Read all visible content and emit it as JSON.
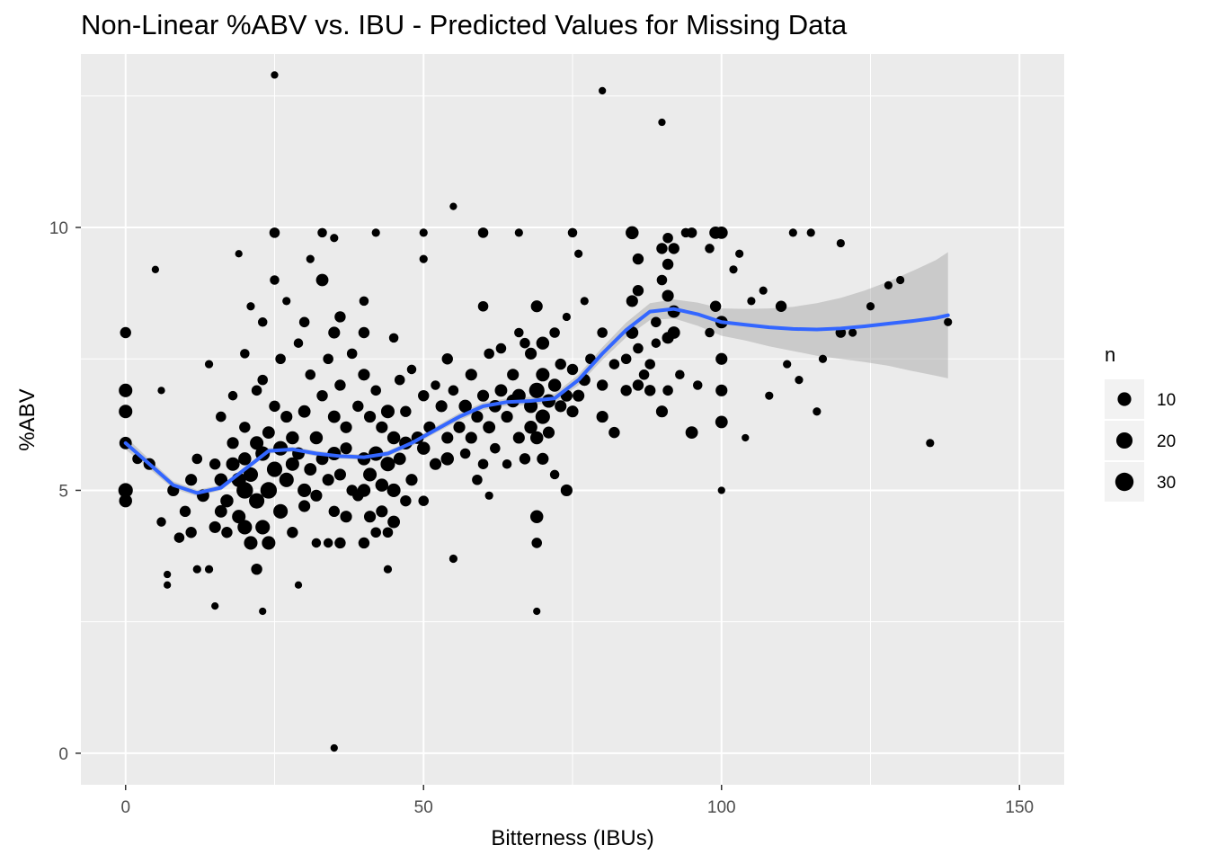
{
  "chart_data": {
    "type": "scatter",
    "title": "Non-Linear %ABV vs. IBU - Predicted Values for Missing Data",
    "xlabel": "Bitterness (IBUs)",
    "ylabel": "%ABV",
    "xlim": [
      -7.5,
      157.5
    ],
    "ylim": [
      -0.6,
      13.3
    ],
    "x_ticks": [
      0,
      50,
      100,
      150
    ],
    "y_ticks": [
      0,
      5,
      10
    ],
    "grid": true,
    "colors": {
      "panel": "#EBEBEB",
      "grid": "#FFFFFF",
      "points": "#000000",
      "smooth_line": "#3366FF",
      "confidence_band": "#999999"
    },
    "legend": {
      "title": "n",
      "placement": "right",
      "entries": [
        {
          "label": "10",
          "n": 10
        },
        {
          "label": "20",
          "n": 20
        },
        {
          "label": "30",
          "n": 30
        }
      ]
    },
    "points": [
      [
        0,
        5.0,
        20
      ],
      [
        0,
        5.9,
        12
      ],
      [
        0,
        6.5,
        16
      ],
      [
        0,
        6.9,
        16
      ],
      [
        0,
        8.0,
        8
      ],
      [
        0,
        4.8,
        14
      ],
      [
        2,
        5.6,
        6
      ],
      [
        4,
        5.5,
        10
      ],
      [
        5,
        9.2,
        1
      ],
      [
        6,
        4.4,
        4
      ],
      [
        6,
        6.9,
        1
      ],
      [
        7,
        3.4,
        1
      ],
      [
        7,
        3.2,
        1
      ],
      [
        8,
        5.0,
        10
      ],
      [
        9,
        4.1,
        6
      ],
      [
        10,
        4.6,
        8
      ],
      [
        11,
        5.2,
        10
      ],
      [
        11,
        4.2,
        8
      ],
      [
        12,
        3.5,
        2
      ],
      [
        12,
        5.6,
        6
      ],
      [
        13,
        4.9,
        12
      ],
      [
        14,
        3.5,
        2
      ],
      [
        14,
        7.4,
        2
      ],
      [
        15,
        4.3,
        10
      ],
      [
        15,
        5.5,
        8
      ],
      [
        15,
        2.8,
        1
      ],
      [
        16,
        4.6,
        12
      ],
      [
        16,
        6.4,
        6
      ],
      [
        16,
        5.2,
        14
      ],
      [
        17,
        4.8,
        14
      ],
      [
        17,
        4.2,
        8
      ],
      [
        18,
        5.5,
        16
      ],
      [
        18,
        5.9,
        10
      ],
      [
        18,
        6.8,
        4
      ],
      [
        19,
        5.2,
        20
      ],
      [
        19,
        4.5,
        16
      ],
      [
        19,
        9.5,
        1
      ],
      [
        20,
        5.0,
        30
      ],
      [
        20,
        4.3,
        20
      ],
      [
        20,
        5.6,
        14
      ],
      [
        20,
        6.2,
        8
      ],
      [
        20,
        7.6,
        4
      ],
      [
        21,
        4.0,
        16
      ],
      [
        21,
        8.5,
        2
      ],
      [
        21,
        5.3,
        20
      ],
      [
        22,
        4.8,
        24
      ],
      [
        22,
        6.9,
        6
      ],
      [
        22,
        3.5,
        8
      ],
      [
        22,
        5.9,
        16
      ],
      [
        23,
        4.3,
        20
      ],
      [
        23,
        5.7,
        20
      ],
      [
        23,
        7.1,
        6
      ],
      [
        23,
        8.2,
        4
      ],
      [
        23,
        2.7,
        1
      ],
      [
        24,
        5.0,
        30
      ],
      [
        24,
        6.1,
        12
      ],
      [
        24,
        4.0,
        16
      ],
      [
        25,
        5.4,
        24
      ],
      [
        25,
        6.6,
        8
      ],
      [
        25,
        9.0,
        4
      ],
      [
        25,
        9.9,
        6
      ],
      [
        25,
        12.9,
        1
      ],
      [
        26,
        4.6,
        20
      ],
      [
        26,
        5.8,
        20
      ],
      [
        26,
        7.5,
        6
      ],
      [
        27,
        5.2,
        20
      ],
      [
        27,
        6.4,
        10
      ],
      [
        27,
        8.6,
        2
      ],
      [
        28,
        5.5,
        16
      ],
      [
        28,
        4.2,
        8
      ],
      [
        28,
        6.0,
        14
      ],
      [
        29,
        5.7,
        12
      ],
      [
        29,
        7.8,
        4
      ],
      [
        29,
        3.2,
        1
      ],
      [
        30,
        5.0,
        16
      ],
      [
        30,
        6.5,
        12
      ],
      [
        30,
        4.7,
        10
      ],
      [
        30,
        8.2,
        6
      ],
      [
        31,
        5.4,
        12
      ],
      [
        31,
        7.2,
        6
      ],
      [
        31,
        9.4,
        2
      ],
      [
        32,
        4.9,
        10
      ],
      [
        32,
        6.0,
        14
      ],
      [
        32,
        4.0,
        4
      ],
      [
        33,
        5.6,
        12
      ],
      [
        33,
        6.8,
        8
      ],
      [
        33,
        9.0,
        12
      ],
      [
        33,
        9.9,
        4
      ],
      [
        34,
        5.2,
        10
      ],
      [
        34,
        7.5,
        6
      ],
      [
        34,
        4.0,
        4
      ],
      [
        35,
        5.7,
        16
      ],
      [
        35,
        6.4,
        12
      ],
      [
        35,
        8.0,
        10
      ],
      [
        35,
        4.6,
        8
      ],
      [
        35,
        9.8,
        2
      ],
      [
        35,
        0.1,
        1
      ],
      [
        36,
        5.3,
        10
      ],
      [
        36,
        7.0,
        8
      ],
      [
        36,
        8.3,
        8
      ],
      [
        36,
        4.0,
        8
      ],
      [
        37,
        5.8,
        10
      ],
      [
        37,
        4.5,
        10
      ],
      [
        37,
        6.2,
        10
      ],
      [
        38,
        5.0,
        8
      ],
      [
        38,
        7.6,
        6
      ],
      [
        39,
        4.9,
        8
      ],
      [
        39,
        6.6,
        8
      ],
      [
        40,
        5.6,
        14
      ],
      [
        40,
        5.0,
        14
      ],
      [
        40,
        7.2,
        10
      ],
      [
        40,
        8.0,
        8
      ],
      [
        40,
        8.6,
        4
      ],
      [
        40,
        4.0,
        8
      ],
      [
        41,
        4.5,
        10
      ],
      [
        41,
        6.4,
        10
      ],
      [
        41,
        5.3,
        16
      ],
      [
        42,
        5.7,
        20
      ],
      [
        42,
        6.9,
        6
      ],
      [
        42,
        4.2,
        6
      ],
      [
        42,
        9.9,
        2
      ],
      [
        43,
        4.6,
        10
      ],
      [
        43,
        6.2,
        10
      ],
      [
        43,
        5.1,
        14
      ],
      [
        44,
        5.5,
        20
      ],
      [
        44,
        6.5,
        16
      ],
      [
        44,
        4.2,
        6
      ],
      [
        44,
        3.5,
        2
      ],
      [
        45,
        5.0,
        16
      ],
      [
        45,
        6.0,
        14
      ],
      [
        45,
        7.9,
        4
      ],
      [
        45,
        4.4,
        12
      ],
      [
        46,
        5.6,
        12
      ],
      [
        46,
        7.1,
        6
      ],
      [
        47,
        5.9,
        14
      ],
      [
        47,
        4.8,
        8
      ],
      [
        47,
        6.5,
        8
      ],
      [
        48,
        5.2,
        10
      ],
      [
        48,
        7.3,
        4
      ],
      [
        49,
        6.0,
        12
      ],
      [
        50,
        5.8,
        14
      ],
      [
        50,
        6.8,
        8
      ],
      [
        50,
        4.8,
        6
      ],
      [
        50,
        9.4,
        2
      ],
      [
        50,
        9.9,
        2
      ],
      [
        51,
        6.2,
        10
      ],
      [
        52,
        5.5,
        10
      ],
      [
        52,
        7.0,
        4
      ],
      [
        53,
        6.6,
        10
      ],
      [
        54,
        6.0,
        10
      ],
      [
        54,
        7.5,
        8
      ],
      [
        54,
        5.6,
        14
      ],
      [
        55,
        6.9,
        6
      ],
      [
        55,
        3.7,
        2
      ],
      [
        55,
        10.4,
        1
      ],
      [
        56,
        6.2,
        10
      ],
      [
        57,
        6.6,
        14
      ],
      [
        57,
        5.7,
        6
      ],
      [
        58,
        6.0,
        10
      ],
      [
        58,
        7.2,
        10
      ],
      [
        59,
        6.4,
        10
      ],
      [
        59,
        5.2,
        6
      ],
      [
        60,
        6.8,
        10
      ],
      [
        60,
        8.5,
        6
      ],
      [
        60,
        9.9,
        6
      ],
      [
        60,
        5.5,
        6
      ],
      [
        61,
        6.2,
        12
      ],
      [
        61,
        7.6,
        6
      ],
      [
        61,
        4.9,
        2
      ],
      [
        62,
        6.6,
        12
      ],
      [
        62,
        5.8,
        6
      ],
      [
        63,
        6.9,
        12
      ],
      [
        63,
        7.7,
        6
      ],
      [
        64,
        6.4,
        10
      ],
      [
        64,
        5.5,
        4
      ],
      [
        65,
        6.7,
        14
      ],
      [
        65,
        7.2,
        10
      ],
      [
        66,
        6.0,
        10
      ],
      [
        66,
        6.8,
        16
      ],
      [
        66,
        8.0,
        4
      ],
      [
        66,
        9.9,
        2
      ],
      [
        67,
        5.6,
        8
      ],
      [
        67,
        7.8,
        6
      ],
      [
        68,
        6.2,
        14
      ],
      [
        68,
        6.6,
        16
      ],
      [
        68,
        7.6,
        10
      ],
      [
        69,
        6.9,
        24
      ],
      [
        69,
        6.0,
        14
      ],
      [
        69,
        4.5,
        14
      ],
      [
        69,
        8.5,
        10
      ],
      [
        69,
        4.0,
        6
      ],
      [
        69,
        2.7,
        1
      ],
      [
        70,
        6.4,
        20
      ],
      [
        70,
        7.2,
        16
      ],
      [
        70,
        5.6,
        10
      ],
      [
        70,
        7.8,
        14
      ],
      [
        71,
        6.7,
        16
      ],
      [
        71,
        6.1,
        10
      ],
      [
        72,
        7.0,
        14
      ],
      [
        72,
        8.0,
        6
      ],
      [
        72,
        5.3,
        4
      ],
      [
        73,
        6.6,
        10
      ],
      [
        73,
        7.4,
        8
      ],
      [
        74,
        6.8,
        10
      ],
      [
        74,
        5.0,
        10
      ],
      [
        74,
        8.3,
        2
      ],
      [
        75,
        6.5,
        10
      ],
      [
        75,
        7.3,
        8
      ],
      [
        75,
        9.9,
        4
      ],
      [
        76,
        6.8,
        10
      ],
      [
        76,
        9.5,
        2
      ],
      [
        77,
        7.1,
        10
      ],
      [
        77,
        8.6,
        2
      ],
      [
        78,
        7.5,
        6
      ],
      [
        80,
        7.0,
        8
      ],
      [
        80,
        12.6,
        1
      ],
      [
        80,
        6.4,
        10
      ],
      [
        80,
        8.0,
        6
      ],
      [
        82,
        7.4,
        6
      ],
      [
        82,
        6.1,
        8
      ],
      [
        84,
        6.9,
        8
      ],
      [
        84,
        7.5,
        6
      ],
      [
        85,
        8.6,
        10
      ],
      [
        85,
        9.9,
        14
      ],
      [
        85,
        8.0,
        12
      ],
      [
        86,
        8.8,
        8
      ],
      [
        86,
        7.0,
        8
      ],
      [
        86,
        9.4,
        8
      ],
      [
        86,
        7.7,
        6
      ],
      [
        87,
        7.2,
        6
      ],
      [
        88,
        6.9,
        8
      ],
      [
        88,
        7.4,
        6
      ],
      [
        89,
        8.2,
        6
      ],
      [
        89,
        7.8,
        4
      ],
      [
        90,
        9.0,
        6
      ],
      [
        90,
        9.6,
        8
      ],
      [
        90,
        6.5,
        10
      ],
      [
        90,
        12.0,
        1
      ],
      [
        91,
        8.7,
        10
      ],
      [
        91,
        9.3,
        8
      ],
      [
        91,
        7.9,
        10
      ],
      [
        91,
        9.8,
        6
      ],
      [
        91,
        6.9,
        6
      ],
      [
        92,
        8.4,
        12
      ],
      [
        92,
        9.6,
        8
      ],
      [
        92,
        8.0,
        12
      ],
      [
        93,
        7.2,
        4
      ],
      [
        94,
        9.9,
        4
      ],
      [
        95,
        6.1,
        12
      ],
      [
        95,
        9.9,
        6
      ],
      [
        96,
        7.0,
        4
      ],
      [
        98,
        9.6,
        4
      ],
      [
        98,
        8.0,
        4
      ],
      [
        99,
        9.9,
        12
      ],
      [
        99,
        8.5,
        8
      ],
      [
        100,
        9.9,
        12
      ],
      [
        100,
        8.2,
        12
      ],
      [
        100,
        6.3,
        12
      ],
      [
        100,
        6.9,
        10
      ],
      [
        100,
        7.5,
        10
      ],
      [
        100,
        5.0,
        1
      ],
      [
        102,
        9.2,
        2
      ],
      [
        103,
        9.5,
        2
      ],
      [
        104,
        6.0,
        1
      ],
      [
        105,
        8.6,
        2
      ],
      [
        107,
        8.8,
        2
      ],
      [
        108,
        6.8,
        2
      ],
      [
        110,
        8.5,
        8
      ],
      [
        111,
        7.4,
        2
      ],
      [
        112,
        9.9,
        2
      ],
      [
        113,
        7.1,
        2
      ],
      [
        115,
        9.9,
        2
      ],
      [
        116,
        6.5,
        2
      ],
      [
        117,
        7.5,
        2
      ],
      [
        120,
        8.0,
        6
      ],
      [
        120,
        9.7,
        2
      ],
      [
        122,
        8.0,
        2
      ],
      [
        125,
        8.5,
        2
      ],
      [
        128,
        8.9,
        2
      ],
      [
        130,
        9.0,
        2
      ],
      [
        135,
        5.9,
        2
      ],
      [
        138,
        8.2,
        2
      ]
    ],
    "smooth": {
      "x": [
        0,
        4,
        8,
        12,
        16,
        20,
        24,
        28,
        32,
        36,
        40,
        44,
        48,
        52,
        56,
        60,
        64,
        68,
        72,
        76,
        80,
        84,
        88,
        92,
        96,
        100,
        104,
        108,
        112,
        116,
        120,
        124,
        128,
        132,
        136,
        138
      ],
      "y": [
        5.9,
        5.5,
        5.1,
        4.95,
        5.05,
        5.4,
        5.75,
        5.78,
        5.7,
        5.65,
        5.63,
        5.7,
        5.9,
        6.15,
        6.4,
        6.6,
        6.68,
        6.7,
        6.75,
        7.1,
        7.6,
        8.05,
        8.4,
        8.45,
        8.35,
        8.2,
        8.15,
        8.1,
        8.07,
        8.06,
        8.08,
        8.12,
        8.17,
        8.22,
        8.28,
        8.33
      ],
      "band_half_width": [
        0.12,
        0.09,
        0.07,
        0.06,
        0.05,
        0.05,
        0.05,
        0.05,
        0.05,
        0.05,
        0.05,
        0.05,
        0.06,
        0.06,
        0.07,
        0.07,
        0.07,
        0.08,
        0.09,
        0.1,
        0.12,
        0.14,
        0.16,
        0.18,
        0.22,
        0.26,
        0.3,
        0.36,
        0.42,
        0.5,
        0.58,
        0.68,
        0.8,
        0.95,
        1.1,
        1.2
      ]
    }
  }
}
